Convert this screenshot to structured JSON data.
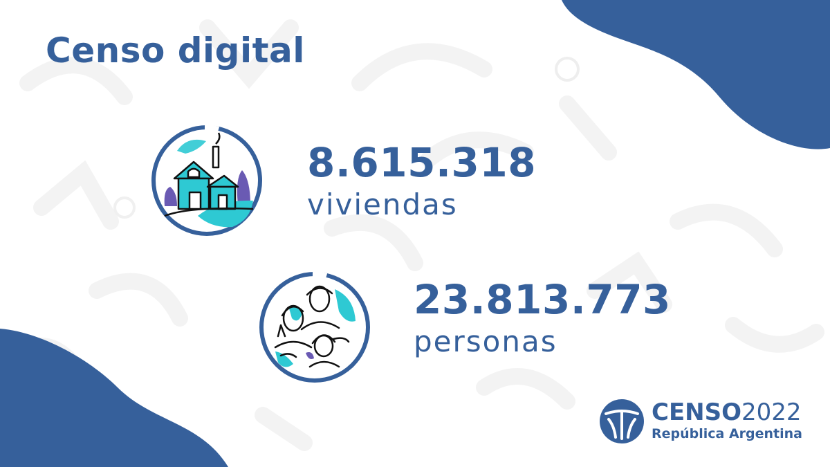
{
  "title": "Censo digital",
  "stats": [
    {
      "value": "8.615.318",
      "label": "viviendas",
      "icon": "house-icon"
    },
    {
      "value": "23.813.773",
      "label": "personas",
      "icon": "people-icon"
    }
  ],
  "logo": {
    "brand": "CENSO",
    "year": "2022",
    "subtitle": "República Argentina"
  },
  "colors": {
    "primary": "#36609b",
    "accent": "#2ec9d3",
    "purple": "#6a5ab3",
    "background": "#ffffff"
  }
}
